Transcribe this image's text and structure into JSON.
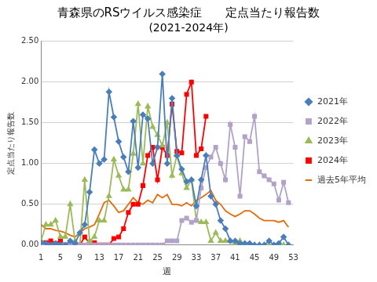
{
  "chart_data": {
    "type": "line",
    "title": "青森県のRSウイルス感染症　　定点当たり報告数",
    "subtitle": "(2021-2024年)",
    "x_label": "週",
    "y_label": "定点当たり報告数",
    "x": [
      1,
      2,
      3,
      4,
      5,
      6,
      7,
      8,
      9,
      10,
      11,
      12,
      13,
      14,
      15,
      16,
      17,
      18,
      19,
      20,
      21,
      22,
      23,
      24,
      25,
      26,
      27,
      28,
      29,
      30,
      31,
      32,
      33,
      34,
      35,
      36,
      37,
      38,
      39,
      40,
      41,
      42,
      43,
      44,
      45,
      46,
      47,
      48,
      49,
      50,
      51,
      52,
      53
    ],
    "xlim": [
      1,
      53
    ],
    "xticks": [
      1,
      5,
      9,
      13,
      17,
      21,
      25,
      29,
      33,
      37,
      41,
      45,
      49,
      53
    ],
    "ylim": [
      0,
      2.5
    ],
    "yticks": [
      {
        "value": 0,
        "label": "0.00"
      },
      {
        "value": 0.5,
        "label": "0.50"
      },
      {
        "value": 1,
        "label": "1.00"
      },
      {
        "value": 1.5,
        "label": "1.50"
      },
      {
        "value": 2,
        "label": "2.00"
      },
      {
        "value": 2.5,
        "label": "2.50"
      }
    ],
    "grid": true,
    "legend": "right",
    "series": [
      {
        "name": "2021年",
        "color": "#4a7ebb",
        "marker": "diamond",
        "values": [
          0.03,
          0.02,
          0.0,
          0.02,
          0.0,
          0.0,
          0.05,
          0.02,
          0.15,
          0.25,
          0.65,
          1.17,
          1.0,
          1.05,
          1.88,
          1.57,
          1.27,
          1.08,
          0.9,
          1.52,
          0.95,
          1.6,
          1.55,
          1.0,
          1.2,
          2.1,
          1.0,
          1.8,
          1.1,
          0.93,
          0.78,
          0.8,
          0.48,
          0.8,
          1.1,
          0.6,
          0.5,
          0.3,
          0.2,
          0.05,
          0.05,
          0.02,
          0.02,
          0.02,
          0.0,
          0.0,
          0.0,
          0.05,
          0.0,
          0.02,
          0.1,
          0.0,
          null
        ]
      },
      {
        "name": "2022年",
        "color": "#b3a2c7",
        "marker": "square",
        "values": [
          0.0,
          0.0,
          0.0,
          0.0,
          0.0,
          0.0,
          0.0,
          0.0,
          0.0,
          0.0,
          0.0,
          0.0,
          0.0,
          0.0,
          0.0,
          0.0,
          0.0,
          0.0,
          0.0,
          0.0,
          0.0,
          0.0,
          0.0,
          0.0,
          0.0,
          0.0,
          0.05,
          0.05,
          0.05,
          0.3,
          0.33,
          0.28,
          0.3,
          0.7,
          0.95,
          1.08,
          1.2,
          1.0,
          0.8,
          1.48,
          1.2,
          0.6,
          1.33,
          1.27,
          1.58,
          0.9,
          0.85,
          0.8,
          0.75,
          0.55,
          0.77,
          0.52,
          null
        ]
      },
      {
        "name": "2023年",
        "color": "#9bbb59",
        "marker": "triangle",
        "values": [
          0.05,
          0.25,
          0.25,
          0.3,
          0.1,
          0.1,
          0.5,
          0.05,
          0.0,
          0.8,
          0.05,
          0.1,
          0.3,
          0.3,
          0.6,
          1.05,
          0.85,
          0.68,
          0.68,
          1.12,
          1.73,
          1.0,
          1.7,
          1.45,
          1.35,
          1.22,
          1.5,
          0.85,
          1.1,
          0.88,
          0.7,
          0.8,
          0.3,
          0.28,
          0.28,
          0.05,
          0.15,
          0.05,
          0.05,
          0.05,
          0.0,
          0.05,
          0.0,
          0.0,
          0.0,
          0.0,
          0.0,
          0.0,
          0.0,
          0.0,
          0.0,
          0.0,
          null
        ]
      },
      {
        "name": "2024年",
        "color": "#ff0000",
        "marker": "square",
        "values": [
          0.03,
          0.03,
          0.05,
          0.02,
          0.05,
          0.0,
          0.0,
          0.0,
          0.0,
          0.1,
          0.02,
          0.03,
          0.0,
          0.0,
          0.0,
          0.08,
          0.1,
          0.2,
          0.4,
          0.5,
          0.5,
          0.73,
          1.1,
          1.2,
          0.8,
          1.2,
          1.1,
          1.73,
          1.15,
          1.13,
          1.85,
          2.0,
          1.1,
          1.18,
          1.58,
          null,
          null,
          null,
          null,
          null,
          null,
          null,
          null,
          null,
          null,
          null,
          null,
          null,
          null,
          null,
          null,
          null,
          null
        ]
      },
      {
        "name": "過去5年平均",
        "color": "#e46c0a",
        "marker": "none",
        "values": [
          0.25,
          0.2,
          0.2,
          0.18,
          0.17,
          0.15,
          0.12,
          0.1,
          0.15,
          0.2,
          0.22,
          0.25,
          0.38,
          0.52,
          0.55,
          0.48,
          0.4,
          0.42,
          0.5,
          0.58,
          0.52,
          0.5,
          0.55,
          0.52,
          0.62,
          0.58,
          0.62,
          0.5,
          0.5,
          0.48,
          0.52,
          0.48,
          0.55,
          0.58,
          0.62,
          0.67,
          0.55,
          0.5,
          0.42,
          0.38,
          0.35,
          0.38,
          0.42,
          0.42,
          0.38,
          0.33,
          0.3,
          0.3,
          0.3,
          0.28,
          0.3,
          0.22,
          null
        ]
      }
    ]
  }
}
